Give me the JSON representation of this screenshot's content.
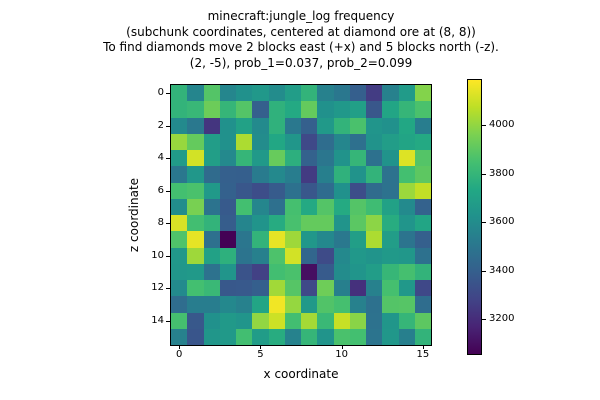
{
  "title": {
    "lines": [
      "minecraft:jungle_log frequency",
      "(subchunk coordinates, centered at diamond ore at (8, 8))",
      "To find diamonds move 2 blocks east (+x) and 5 blocks north (-z).",
      "(2, -5), prob_1=0.037, prob_2=0.099"
    ]
  },
  "axes": {
    "xlabel": "x coordinate",
    "ylabel": "z coordinate",
    "x_ticks": [
      0,
      5,
      10,
      15
    ],
    "y_ticks": [
      0,
      2,
      4,
      6,
      8,
      10,
      12,
      14
    ]
  },
  "colorbar": {
    "ticks": [
      3200,
      3400,
      3600,
      3800,
      4000
    ],
    "vmin": 3056,
    "vmax": 4186
  },
  "chart_data": {
    "type": "heatmap",
    "title": "minecraft:jungle_log frequency",
    "xlabel": "x coordinate",
    "ylabel": "z coordinate",
    "x_range": [
      0,
      15
    ],
    "z_range": [
      0,
      15
    ],
    "colormap": "viridis",
    "vmin": 3056,
    "vmax": 4186,
    "colorbar_ticks": [
      3200,
      3400,
      3600,
      3800,
      4000
    ],
    "viridis_stops": [
      "#440154",
      "#482475",
      "#414487",
      "#355f8d",
      "#2a788e",
      "#21918c",
      "#22a884",
      "#44bf70",
      "#7ad151",
      "#bddf26",
      "#fde725"
    ],
    "values": [
      [
        3790,
        3565,
        3880,
        3570,
        3620,
        3655,
        3600,
        3680,
        3790,
        3550,
        3505,
        3395,
        3255,
        3550,
        3670,
        3975
      ],
      [
        3790,
        3810,
        3930,
        3800,
        3880,
        3400,
        3780,
        3740,
        3915,
        3620,
        3655,
        3690,
        3360,
        3720,
        3800,
        3860
      ],
      [
        3590,
        3510,
        3230,
        3620,
        3700,
        3590,
        3780,
        3510,
        3400,
        3660,
        3790,
        3860,
        3640,
        3620,
        3730,
        3530
      ],
      [
        4010,
        3915,
        3680,
        3620,
        4045,
        3600,
        3730,
        3645,
        3305,
        3460,
        3570,
        3470,
        3630,
        3680,
        3715,
        3740
      ],
      [
        3670,
        4110,
        3685,
        3585,
        3800,
        3660,
        3920,
        3770,
        3410,
        3500,
        3630,
        3800,
        3475,
        3630,
        4130,
        3880
      ],
      [
        3505,
        3650,
        3450,
        3400,
        3395,
        3520,
        3585,
        3530,
        3250,
        3540,
        3780,
        3630,
        3790,
        3480,
        3845,
        3900
      ],
      [
        3845,
        3860,
        3660,
        3405,
        3360,
        3320,
        3380,
        3475,
        3360,
        3455,
        3620,
        3320,
        3450,
        3480,
        4015,
        4080
      ],
      [
        3605,
        3955,
        3485,
        3375,
        3845,
        3570,
        3470,
        3850,
        3740,
        3880,
        3745,
        3880,
        3830,
        3700,
        3590,
        3410
      ],
      [
        4120,
        3840,
        3790,
        3385,
        3565,
        3635,
        3750,
        3855,
        3915,
        3915,
        3635,
        3895,
        3990,
        3755,
        3640,
        3720
      ],
      [
        3870,
        4145,
        3470,
        3060,
        3500,
        3790,
        4145,
        4020,
        3650,
        3580,
        3510,
        3685,
        4045,
        3680,
        3490,
        3400
      ],
      [
        3655,
        4020,
        3700,
        3775,
        3490,
        3545,
        3865,
        4110,
        3425,
        3310,
        3585,
        3655,
        3635,
        3660,
        3650,
        3475
      ],
      [
        3650,
        3660,
        3480,
        3640,
        3345,
        3270,
        3840,
        3860,
        3100,
        3380,
        3600,
        3640,
        3680,
        3805,
        3850,
        3790
      ],
      [
        3590,
        3845,
        3815,
        3365,
        3370,
        3395,
        4025,
        3885,
        3305,
        3935,
        3540,
        3210,
        3550,
        3850,
        3655,
        3300
      ],
      [
        3460,
        3530,
        3530,
        3580,
        3550,
        3720,
        4165,
        4005,
        3660,
        3875,
        3850,
        3550,
        3475,
        3880,
        3885,
        3460
      ],
      [
        3850,
        3365,
        3620,
        3660,
        3640,
        4000,
        4100,
        3840,
        4030,
        3815,
        4090,
        3985,
        3480,
        3645,
        3800,
        3900
      ],
      [
        3550,
        3355,
        3645,
        3660,
        3840,
        3675,
        3755,
        3555,
        3800,
        3635,
        3860,
        3845,
        3490,
        3650,
        3540,
        3790
      ]
    ]
  }
}
